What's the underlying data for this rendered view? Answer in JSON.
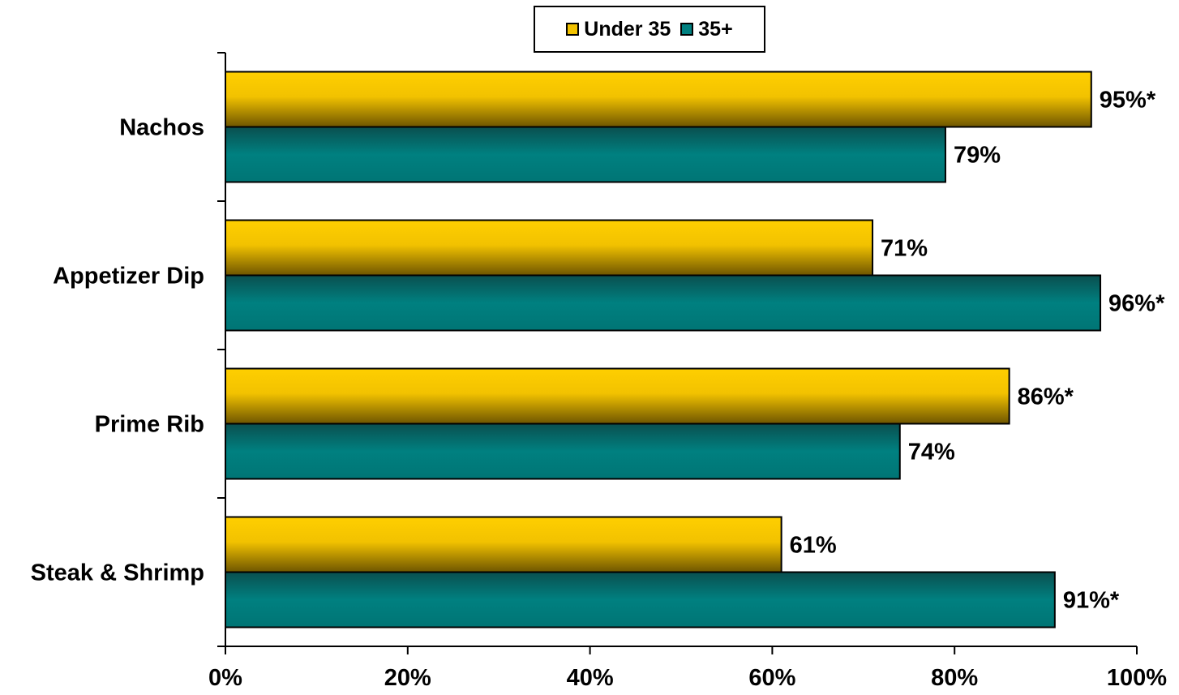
{
  "chart_data": {
    "type": "bar",
    "orientation": "horizontal",
    "title": "",
    "xlabel": "",
    "ylabel": "",
    "categories": [
      "Nachos",
      "Appetizer Dip",
      "Prime Rib",
      "Steak & Shrimp"
    ],
    "series": [
      {
        "name": "Under 35",
        "color": "#F2C200",
        "values": [
          95,
          71,
          86,
          61
        ],
        "labels": [
          "95%*",
          "71%",
          "86%*",
          "61%"
        ]
      },
      {
        "name": "35+",
        "color": "#008080",
        "values": [
          79,
          96,
          74,
          91
        ],
        "labels": [
          "79%",
          "96%*",
          "74%",
          "91%*"
        ]
      }
    ],
    "xlim": [
      0,
      100
    ],
    "x_ticks": [
      "0%",
      "20%",
      "40%",
      "60%",
      "80%",
      "100%"
    ],
    "grid": false,
    "legend_position": "top"
  }
}
